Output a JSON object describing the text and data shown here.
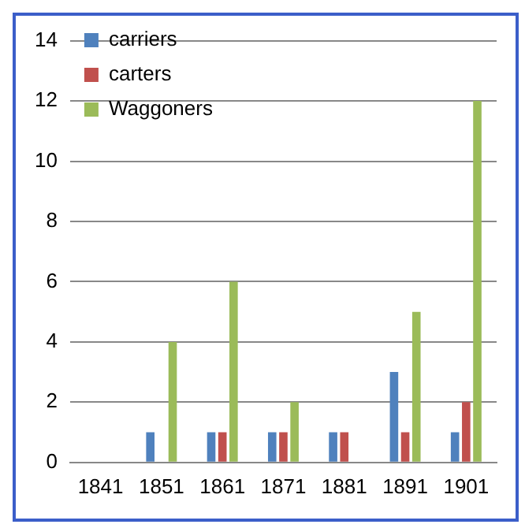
{
  "chart_data": {
    "type": "bar",
    "categories": [
      "1841",
      "1851",
      "1861",
      "1871",
      "1881",
      "1891",
      "1901"
    ],
    "series": [
      {
        "name": "carriers",
        "color": "#4f81bd",
        "values": [
          0,
          1,
          1,
          1,
          1,
          3,
          1
        ]
      },
      {
        "name": "carters",
        "color": "#c0504d",
        "values": [
          0,
          0,
          1,
          1,
          1,
          1,
          2
        ]
      },
      {
        "name": "Waggoners",
        "color": "#9bbb59",
        "values": [
          0,
          4,
          6,
          2,
          0,
          5,
          12
        ]
      }
    ],
    "ylim": [
      0,
      14
    ],
    "yticks": [
      0,
      2,
      4,
      6,
      8,
      10,
      12,
      14
    ],
    "grid": "y",
    "legend": "top left"
  }
}
